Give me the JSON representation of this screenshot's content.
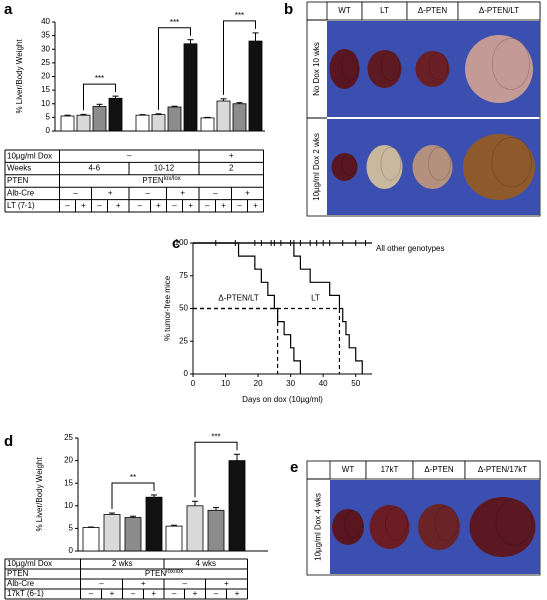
{
  "panel_labels": [
    "a",
    "b",
    "c",
    "d",
    "e"
  ],
  "chart_data": [
    {
      "type": "bar",
      "y_label": "% Liver/Body Weight",
      "ylim": [
        0,
        40
      ],
      "yticks": [
        0,
        5,
        10,
        15,
        20,
        25,
        30,
        35,
        40
      ],
      "values": [
        5.5,
        5.8,
        9,
        12,
        5.8,
        6,
        8.8,
        32,
        4.8,
        11,
        10,
        33
      ],
      "errors": [
        0.3,
        0.3,
        0.8,
        0.8,
        0.2,
        0.3,
        0.3,
        1.5,
        0.2,
        0.8,
        0.4,
        3
      ],
      "colors": [
        "#ffffff",
        "#d9d9d9",
        "#8c8c8c",
        "#111111",
        "#ffffff",
        "#d9d9d9",
        "#8c8c8c",
        "#111111",
        "#ffffff",
        "#d9d9d9",
        "#8c8c8c",
        "#111111"
      ],
      "significance": [
        "***",
        "***",
        "***"
      ],
      "table": [
        {
          "label": "10µg/ml Dox",
          "cells": [
            {
              "text": "–",
              "span": 8
            },
            {
              "text": "+",
              "span": 4
            }
          ]
        },
        {
          "label": "Weeks",
          "cells": [
            {
              "text": "4-6",
              "span": 4
            },
            {
              "text": "10-12",
              "span": 4
            },
            {
              "text": "2",
              "span": 4
            }
          ]
        },
        {
          "label": "PTEN",
          "cells": [
            {
              "text": "PTEN",
              "sup": "lox/lox",
              "span": 12
            }
          ]
        },
        {
          "label": "Alb-Cre",
          "cells": [
            {
              "text": "–",
              "span": 2
            },
            {
              "text": "+",
              "span": 2
            },
            {
              "text": "–",
              "span": 2
            },
            {
              "text": "+",
              "span": 2
            },
            {
              "text": "–",
              "span": 2
            },
            {
              "text": "+",
              "span": 2
            }
          ]
        },
        {
          "label": "LT (7-1)",
          "cells": [
            {
              "text": "–",
              "span": 1
            },
            {
              "text": "+",
              "span": 1
            },
            {
              "text": "–",
              "span": 1
            },
            {
              "text": "+",
              "span": 1
            },
            {
              "text": "–",
              "span": 1
            },
            {
              "text": "+",
              "span": 1
            },
            {
              "text": "–",
              "span": 1
            },
            {
              "text": "+",
              "span": 1
            },
            {
              "text": "–",
              "span": 1
            },
            {
              "text": "+",
              "span": 1
            },
            {
              "text": "–",
              "span": 1
            },
            {
              "text": "+",
              "span": 1
            }
          ]
        }
      ]
    },
    {
      "type": "step",
      "x_label": "Days on dox (10µg/ml)",
      "y_label": "% tumor-free mice",
      "xlim": [
        0,
        55
      ],
      "xticks": [
        0,
        10,
        20,
        30,
        40,
        50
      ],
      "ylim": [
        0,
        100
      ],
      "yticks": [
        0,
        25,
        50,
        75,
        100
      ],
      "series": [
        {
          "name": "All other genotypes",
          "color": "#000000",
          "censored": true,
          "x": [
            7,
            13,
            19,
            21,
            24,
            25,
            27,
            30,
            31,
            33,
            36,
            38,
            40,
            42,
            46,
            50,
            53
          ],
          "values": [
            100,
            100,
            100,
            100,
            100,
            100,
            100,
            100,
            100,
            100,
            100,
            100,
            100,
            100,
            100,
            100,
            100
          ]
        },
        {
          "name": "Δ-PTEN/LT",
          "color": "#000000",
          "median": 26,
          "x": [
            0,
            14,
            19,
            21,
            23,
            25,
            26,
            28,
            30,
            31,
            33
          ],
          "values": [
            100,
            90,
            80,
            70,
            60,
            50,
            40,
            30,
            20,
            10,
            0
          ]
        },
        {
          "name": "LT",
          "color": "#000000",
          "median": 45,
          "x": [
            0,
            31,
            33,
            36,
            42,
            45,
            46,
            47,
            48,
            50,
            52
          ],
          "values": [
            100,
            90,
            80,
            70,
            60,
            50,
            40,
            30,
            20,
            10,
            0
          ]
        }
      ]
    },
    {
      "type": "bar",
      "y_label": "% Liver/Body Weight",
      "ylim": [
        0,
        25
      ],
      "yticks": [
        0,
        5,
        10,
        15,
        20,
        25
      ],
      "values": [
        5.2,
        8.1,
        7.4,
        11.9,
        5.5,
        10,
        9,
        20
      ],
      "errors": [
        0.1,
        0.3,
        0.3,
        0.5,
        0.2,
        1,
        0.6,
        1.4
      ],
      "colors": [
        "#ffffff",
        "#d9d9d9",
        "#8c8c8c",
        "#111111",
        "#ffffff",
        "#d9d9d9",
        "#8c8c8c",
        "#111111"
      ],
      "significance": [
        "**",
        "***"
      ],
      "table": [
        {
          "label": "10µg/ml Dox",
          "cells": [
            {
              "text": "2 wks",
              "span": 4
            },
            {
              "text": "4 wks",
              "span": 4
            }
          ]
        },
        {
          "label": "PTEN",
          "cells": [
            {
              "text": "PTEN",
              "sup": "lox/lox",
              "span": 8
            }
          ]
        },
        {
          "label": "Alb-Cre",
          "cells": [
            {
              "text": "–",
              "span": 2
            },
            {
              "text": "+",
              "span": 2
            },
            {
              "text": "–",
              "span": 2
            },
            {
              "text": "+",
              "span": 2
            }
          ]
        },
        {
          "label": "17kT (6-1)",
          "cells": [
            {
              "text": "–",
              "span": 1
            },
            {
              "text": "+",
              "span": 1
            },
            {
              "text": "–",
              "span": 1
            },
            {
              "text": "+",
              "span": 1
            },
            {
              "text": "–",
              "span": 1
            },
            {
              "text": "+",
              "span": 1
            },
            {
              "text": "–",
              "span": 1
            },
            {
              "text": "+",
              "span": 1
            }
          ]
        }
      ]
    }
  ],
  "panel_b": {
    "columns": [
      "WT",
      "LT",
      "Δ-PTEN",
      "Δ-PTEN/LT"
    ],
    "rows": [
      "No Dox 10 wks",
      "10µg/ml Dox 2 wks"
    ]
  },
  "panel_e": {
    "columns": [
      "WT",
      "17kT",
      "Δ-PTEN",
      "Δ-PTEN/17kT"
    ],
    "rows": [
      "10µg/ml Dox 4 wks"
    ]
  }
}
